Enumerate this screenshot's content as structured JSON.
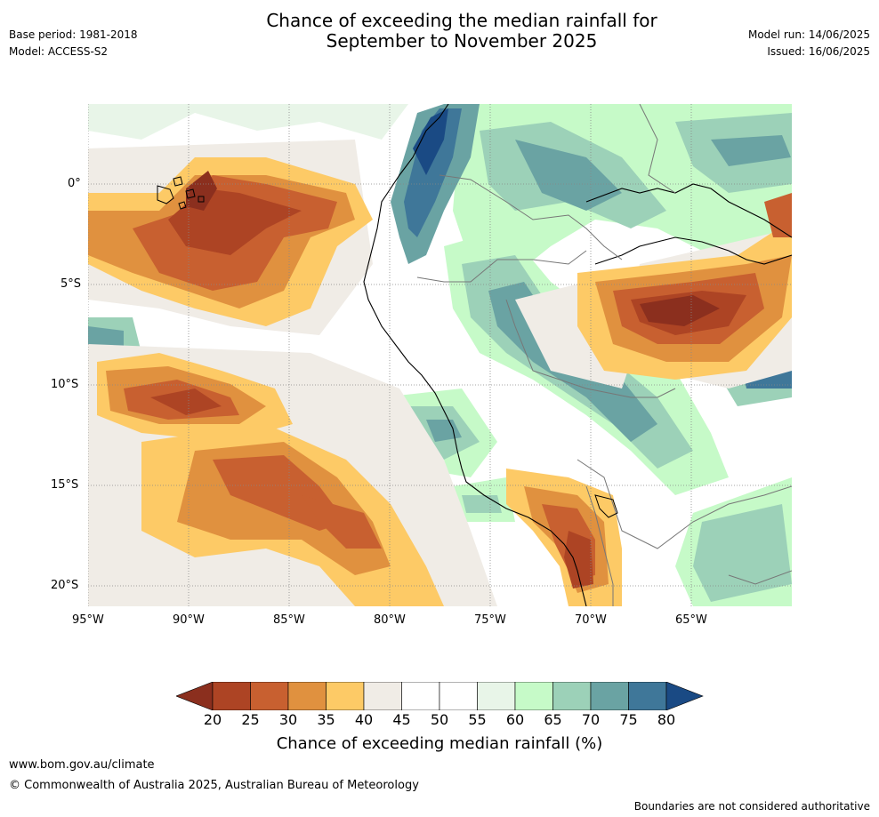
{
  "header": {
    "title_line1": "Chance of exceeding the median rainfall for",
    "title_line2": "September to November 2025",
    "base_period": "Base period: 1981-2018",
    "model": "Model: ACCESS-S2",
    "model_run": "Model run: 14/06/2025",
    "issued": "Issued: 16/06/2025"
  },
  "map": {
    "lat_labels": [
      "0°",
      "5°S",
      "10°S",
      "15°S",
      "20°S"
    ],
    "lon_labels": [
      "95°W",
      "90°W",
      "85°W",
      "80°W",
      "75°W",
      "70°W",
      "65°W"
    ]
  },
  "colorbar": {
    "title": "Chance of exceeding median rainfall (%)",
    "ticks": [
      "20",
      "25",
      "30",
      "35",
      "40",
      "45",
      "50",
      "55",
      "60",
      "65",
      "70",
      "75",
      "80"
    ],
    "colors": {
      "under": "#8b2f1e",
      "b20_25": "#ad4424",
      "b25_30": "#c86030",
      "b30_35": "#e0913f",
      "b35_40": "#fdca66",
      "b40_45": "#f0ece6",
      "b45_50": "#ffffff",
      "b50_55": "#ffffff",
      "b55_60": "#e8f5e8",
      "b60_65": "#c6fac8",
      "b65_70": "#9cd1b8",
      "b70_75": "#6aa3a3",
      "b75_80": "#3f7799",
      "over": "#1a4a84"
    }
  },
  "footer": {
    "url": "www.bom.gov.au/climate",
    "copyright": "© Commonwealth of Australia 2025, Australian Bureau of Meteorology",
    "disclaimer": "Boundaries are not considered authoritative"
  }
}
